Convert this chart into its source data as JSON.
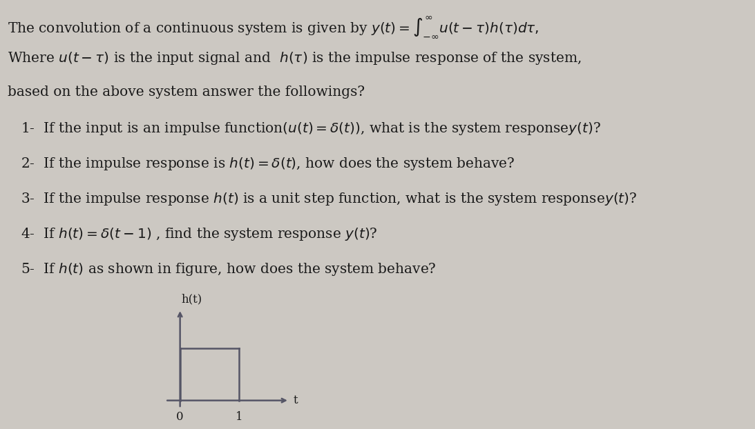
{
  "bg_color": "#ccc8c2",
  "text_color": "#1a1a1a",
  "fontsize_main": 14.5,
  "fontsize_graph": 12,
  "font_family": "DejaVu Serif",
  "lines": [
    "The convolution of a continuous system is given by $y(t) = \\int_{-\\infty}^{\\infty} u(t-\\tau)h(\\tau)d\\tau,$",
    "Where $u(t-\\tau)$ is the input signal and  $h(\\tau)$ is the impulse response of the system,",
    "based on the above system answer the followings?",
    "   1-  If the input is an impulse function$(u(t) = \\delta(t))$, what is the system response$y(t)$?",
    "   2-  If the impulse response is $h(t) = \\delta(t)$, how does the system behave?",
    "   3-  If the impulse response $h(t)$ is a unit step function, what is the system response$y(t)$?",
    "   4-  If $h(t) = \\delta(t-1)$ , find the system response $y(t)$?",
    "   5-  If $h(t)$ as shown in figure, how does the system behave?"
  ],
  "graph_title": "h(t)",
  "graph_xlabel": "t",
  "graph_x0_label": "0",
  "graph_x1_label": "1",
  "graph_color": "#555566"
}
